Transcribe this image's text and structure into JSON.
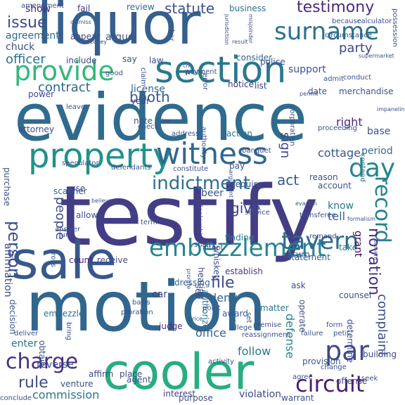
{
  "words": [
    {
      "text": "testify",
      "color": "#433d85"
    },
    {
      "text": "evidence",
      "color": "#2f6b8e"
    },
    {
      "text": "motion",
      "color": "#31668e"
    },
    {
      "text": "liquor",
      "color": "#355f8d"
    },
    {
      "text": "sale",
      "color": "#38588c"
    },
    {
      "text": "section",
      "color": "#2a788e"
    },
    {
      "text": "cooler",
      "color": "#27ad81"
    },
    {
      "text": "property",
      "color": "#21918c"
    },
    {
      "text": "witness",
      "color": "#31668e"
    },
    {
      "text": "provide",
      "color": "#35b779"
    },
    {
      "text": "surname",
      "color": "#2c728e"
    },
    {
      "text": "embezzlement",
      "color": "#25858e"
    },
    {
      "text": "tavern",
      "color": "#306a8e"
    },
    {
      "text": "charge",
      "color": "#46317e"
    },
    {
      "text": "circuit",
      "color": "#481f70"
    },
    {
      "text": "record",
      "color": "#26828e"
    },
    {
      "text": "par",
      "color": "#3f4889"
    },
    {
      "text": "day",
      "color": "#25858e"
    },
    {
      "text": "indictment",
      "color": "#2e6e8e"
    },
    {
      "text": "testimony",
      "color": "#472c7a"
    },
    {
      "text": "person",
      "color": "#3b528b"
    },
    {
      "text": "issue",
      "color": "#3e4a89"
    },
    {
      "text": "rule",
      "color": "#3e4c8a"
    },
    {
      "text": "booth",
      "color": "#38588c"
    },
    {
      "text": "contract",
      "color": "#31678e"
    },
    {
      "text": "officer",
      "color": "#2b748e"
    },
    {
      "text": "statute",
      "color": "#3b518b"
    },
    {
      "text": "party",
      "color": "#414487"
    },
    {
      "text": "file",
      "color": "#3e4989"
    },
    {
      "text": "act",
      "color": "#365c8d"
    },
    {
      "text": "novation",
      "color": "#46307e"
    },
    {
      "text": "complaint",
      "color": "#3b528b"
    },
    {
      "text": "follow",
      "color": "#29798e"
    },
    {
      "text": "commission",
      "color": "#2c738e"
    },
    {
      "text": "people",
      "color": "#3e4c8a"
    },
    {
      "text": "tell",
      "color": "#32648e"
    },
    {
      "text": "give",
      "color": "#404588"
    },
    {
      "text": "deny",
      "color": "#31668e"
    },
    {
      "text": "office",
      "color": "#32658e"
    },
    {
      "text": "beer",
      "color": "#3b518b"
    },
    {
      "text": "know",
      "color": "#2a788e"
    },
    {
      "text": "sign",
      "color": "#3f4889"
    },
    {
      "text": "cottage",
      "color": "#38588c"
    },
    {
      "text": "period",
      "color": "#2e6e8e"
    },
    {
      "text": "right",
      "color": "#482878"
    },
    {
      "text": "interest",
      "color": "#433e85"
    },
    {
      "text": "violation",
      "color": "#3e4989"
    },
    {
      "text": "defense",
      "color": "#24878e"
    },
    {
      "text": "agreement",
      "color": "#30698e"
    },
    {
      "text": "argue",
      "color": "#3b528b"
    },
    {
      "text": "chuck",
      "color": "#3e4c8a"
    },
    {
      "text": "show",
      "color": "#472c7a"
    },
    {
      "text": "fail",
      "color": "#453882"
    },
    {
      "text": "review",
      "color": "#2f6c8e"
    },
    {
      "text": "business",
      "color": "#2d708e"
    },
    {
      "text": "support",
      "color": "#3b528b"
    },
    {
      "text": "consider",
      "color": "#31678e"
    },
    {
      "text": "license",
      "color": "#31668e"
    },
    {
      "text": "hearing",
      "color": "#3e4989"
    },
    {
      "text": "count",
      "color": "#482576"
    },
    {
      "text": "receive",
      "color": "#3e4c8a"
    },
    {
      "text": "affirmation",
      "color": "#3e4989"
    },
    {
      "text": "dealership",
      "color": "#404588"
    },
    {
      "text": "statement",
      "color": "#365c8d"
    },
    {
      "text": "finding",
      "color": "#29798e"
    },
    {
      "text": "grant",
      "color": "#440154"
    },
    {
      "text": "take",
      "color": "#2a788e"
    },
    {
      "text": "whiskey",
      "color": "#3e4c8a"
    },
    {
      "text": "judge",
      "color": "#46307e"
    },
    {
      "text": "establish",
      "color": "#443983"
    },
    {
      "text": "enter",
      "color": "#2c728e"
    },
    {
      "text": "scanner",
      "color": "#31668e"
    },
    {
      "text": "require",
      "color": "#3b528b"
    },
    {
      "text": "contend",
      "color": "#287d8e"
    },
    {
      "text": "car",
      "color": "#3e4989"
    },
    {
      "text": "dressing",
      "color": "#31668e"
    },
    {
      "text": "embezzle",
      "color": "#2d718e"
    },
    {
      "text": "ask",
      "color": "#3e4989"
    },
    {
      "text": "counsel",
      "color": "#3b528b"
    },
    {
      "text": "award",
      "color": "#38588c"
    },
    {
      "text": "matter",
      "color": "#2a788e"
    },
    {
      "text": "affirm",
      "color": "#3e4c8a"
    },
    {
      "text": "place",
      "color": "#3f4889"
    },
    {
      "text": "provision",
      "color": "#38588c"
    },
    {
      "text": "offense",
      "color": "#414487"
    },
    {
      "text": "reverse",
      "color": "#3b528b"
    },
    {
      "text": "determine",
      "color": "#3d4e8a"
    },
    {
      "text": "base",
      "color": "#3b528b"
    },
    {
      "text": "action",
      "color": "#2c738e"
    },
    {
      "text": "date",
      "color": "#39568c"
    },
    {
      "text": "list",
      "color": "#404588"
    },
    {
      "text": "notice",
      "color": "#453581"
    },
    {
      "text": "merchandise",
      "color": "#3b528b"
    },
    {
      "text": "law",
      "color": "#3e4a89"
    },
    {
      "text": "say",
      "color": "#3b518b"
    },
    {
      "text": "work",
      "color": "#2c728e"
    },
    {
      "text": "year",
      "color": "#3e4989"
    },
    {
      "text": "note",
      "color": "#3b528b"
    },
    {
      "text": "pay",
      "color": "#3b528b"
    },
    {
      "text": "use",
      "color": "#3e4c8a"
    },
    {
      "text": "account",
      "color": "#3b528b"
    },
    {
      "text": "authorize",
      "color": "#2d708e"
    },
    {
      "text": "sell",
      "color": "#3b518b"
    },
    {
      "text": "operate",
      "color": "#3b528b"
    },
    {
      "text": "return",
      "color": "#39568c"
    },
    {
      "text": "obtain",
      "color": "#3e4c8a"
    },
    {
      "text": "decision",
      "color": "#39568c"
    },
    {
      "text": "purchase",
      "color": "#3b528b"
    },
    {
      "text": "allow",
      "color": "#3b528b"
    },
    {
      "text": "attorney",
      "color": "#3e4989"
    },
    {
      "text": "appear",
      "color": "#3f4889"
    },
    {
      "text": "include",
      "color": "#3e4989"
    },
    {
      "text": "power",
      "color": "#3e4989"
    },
    {
      "text": "authority",
      "color": "#3b528b"
    },
    {
      "text": "corporation",
      "color": "#3b528b"
    },
    {
      "text": "police",
      "color": "#3e4c8a"
    },
    {
      "text": "intent",
      "color": "#3e4989"
    },
    {
      "text": "reason",
      "color": "#3b528b"
    },
    {
      "text": "building",
      "color": "#3e4989"
    },
    {
      "text": "agent",
      "color": "#3b528b"
    },
    {
      "text": "venture",
      "color": "#3b528b"
    },
    {
      "text": "purpose",
      "color": "#3b528b"
    },
    {
      "text": "warrant",
      "color": "#3b528b"
    },
    {
      "text": "seek",
      "color": "#3b528b"
    },
    {
      "text": "conclude",
      "color": "#3b528b"
    },
    {
      "text": "conduct",
      "color": "#3b528b"
    },
    {
      "text": "payment",
      "color": "#3b528b"
    },
    {
      "text": "proceeding",
      "color": "#3b528b"
    },
    {
      "text": "good",
      "color": "#3b528b"
    },
    {
      "text": "claim",
      "color": "#3b528b"
    },
    {
      "text": "because",
      "color": "#3b528b"
    },
    {
      "text": "calculator",
      "color": "#3b528b"
    },
    {
      "text": "circumstance",
      "color": "#3b528b"
    },
    {
      "text": "jurisdiction",
      "color": "#3b528b"
    },
    {
      "text": "misjoinder",
      "color": "#3b528b"
    },
    {
      "text": "dismiss",
      "color": "#3b528b"
    },
    {
      "text": "amendment",
      "color": "#3b528b"
    },
    {
      "text": "coney",
      "color": "#3b528b"
    },
    {
      "text": "leave",
      "color": "#3b528b"
    },
    {
      "text": "address",
      "color": "#3b528b"
    },
    {
      "text": "tax",
      "color": "#3b528b"
    },
    {
      "text": "check",
      "color": "#3b528b"
    },
    {
      "text": "banquet",
      "color": "#3b528b"
    },
    {
      "text": "speculator",
      "color": "#3b528b"
    },
    {
      "text": "defendants",
      "color": "#3b528b"
    },
    {
      "text": "constitute",
      "color": "#3b528b"
    },
    {
      "text": "argument",
      "color": "#3b528b"
    },
    {
      "text": "evasion",
      "color": "#3b528b"
    },
    {
      "text": "service",
      "color": "#3b528b"
    },
    {
      "text": "term",
      "color": "#3b528b"
    },
    {
      "text": "shall",
      "color": "#3b528b"
    },
    {
      "text": "answer",
      "color": "#3b528b"
    },
    {
      "text": "jury",
      "color": "#3b528b"
    },
    {
      "text": "cross",
      "color": "#3b528b"
    },
    {
      "text": "prorate",
      "color": "#3b528b"
    },
    {
      "text": "proration",
      "color": "#3b528b"
    },
    {
      "text": "deliver",
      "color": "#3b528b"
    },
    {
      "text": "point",
      "color": "#3b528b"
    },
    {
      "text": "price",
      "color": "#3b528b"
    },
    {
      "text": "bring",
      "color": "#3b528b"
    },
    {
      "text": "reassignment",
      "color": "#3b528b"
    },
    {
      "text": "allege",
      "color": "#3b528b"
    },
    {
      "text": "activity",
      "color": "#3b528b"
    },
    {
      "text": "failure",
      "color": "#3b528b"
    },
    {
      "text": "form",
      "color": "#3b528b"
    },
    {
      "text": "petit",
      "color": "#3b528b"
    },
    {
      "text": "premise",
      "color": "#3b528b"
    },
    {
      "text": "agree",
      "color": "#3b528b"
    },
    {
      "text": "change",
      "color": "#3b528b"
    },
    {
      "text": "present",
      "color": "#3b528b"
    },
    {
      "text": "possession",
      "color": "#3b528b"
    },
    {
      "text": "supermarket",
      "color": "#3b528b"
    },
    {
      "text": "impaneling",
      "color": "#3b528b"
    },
    {
      "text": "formalism",
      "color": "#3b528b"
    },
    {
      "text": "transferee",
      "color": "#3b528b"
    },
    {
      "text": "permit",
      "color": "#3b528b"
    },
    {
      "text": "admit",
      "color": "#3b528b"
    },
    {
      "text": "error",
      "color": "#3b528b"
    },
    {
      "text": "bar",
      "color": "#3b528b"
    },
    {
      "text": "believe",
      "color": "#3b528b"
    },
    {
      "text": "remand",
      "color": "#3b528b"
    },
    {
      "text": "basis",
      "color": "#3b528b"
    },
    {
      "text": "result",
      "color": "#3b528b"
    },
    {
      "text": "ch",
      "color": "#3b528b"
    },
    {
      "text": "set",
      "color": "#3b528b"
    },
    {
      "text": "go",
      "color": "#3b528b"
    },
    {
      "text": "quote",
      "color": "#3b528b"
    },
    {
      "text": "wel",
      "color": "#3b528b"
    },
    {
      "text": "mr",
      "color": "#3b528b"
    }
  ]
}
